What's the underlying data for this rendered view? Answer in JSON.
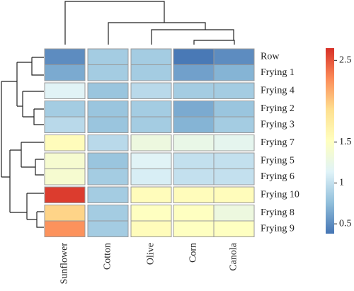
{
  "chart_data": {
    "type": "heatmap",
    "rows": [
      "Row",
      "Frying 1",
      "Frying 4",
      "Frying 2",
      "Frying 3",
      "Frying 7",
      "Frying 5",
      "Frying 6",
      "Frying 10",
      "Frying 8",
      "Frying 9"
    ],
    "columns": [
      "Sunflower",
      "Cotton",
      "Olive",
      "Corn",
      "Canola"
    ],
    "values": [
      [
        0.5,
        0.85,
        0.85,
        0.4,
        0.5
      ],
      [
        0.65,
        0.85,
        0.85,
        0.6,
        0.7
      ],
      [
        1.15,
        0.8,
        0.95,
        0.85,
        0.85
      ],
      [
        0.85,
        0.8,
        0.85,
        0.65,
        0.8
      ],
      [
        0.95,
        0.8,
        0.85,
        0.7,
        0.85
      ],
      [
        1.55,
        0.95,
        1.3,
        1.25,
        1.2
      ],
      [
        1.4,
        0.8,
        1.15,
        1.0,
        1.0
      ],
      [
        1.4,
        0.85,
        1.1,
        1.0,
        1.0
      ],
      [
        2.6,
        0.85,
        1.55,
        1.55,
        1.55
      ],
      [
        1.95,
        0.85,
        1.5,
        1.5,
        1.3
      ],
      [
        2.25,
        0.85,
        1.55,
        1.5,
        1.5
      ]
    ],
    "colormap": [
      "#4575b4",
      "#91bfdb",
      "#e0f3f8",
      "#ffffbf",
      "#fee090",
      "#fc8d59",
      "#d73027"
    ],
    "clim": [
      0.38,
      2.65
    ],
    "cticks": [
      0.5,
      1,
      1.5,
      2.5
    ]
  }
}
